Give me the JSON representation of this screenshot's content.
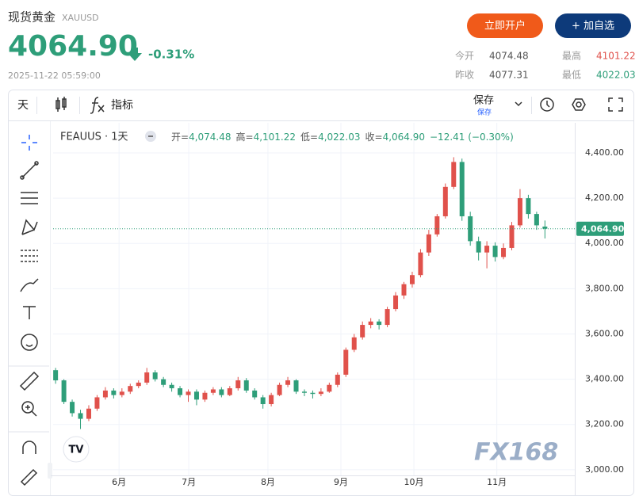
{
  "header": {
    "title": "现货黄金",
    "symbol": "XAUUSD",
    "price": "4064.90",
    "change_pct": "-0.31%",
    "timestamp": "2025-11-22 05:59:00",
    "buttons": [
      "立即开户",
      "+ 加自选"
    ],
    "stats": [
      {
        "label": "今开",
        "value": "4074.48"
      },
      {
        "label": "最高",
        "value": "4101.22"
      },
      {
        "label": "昨收",
        "value": "4077.31"
      },
      {
        "label": "最低",
        "value": "4022.03"
      }
    ]
  },
  "toolbar": {
    "interval": "天",
    "indicators": "指标",
    "save": "保存",
    "save_sub": "保存"
  },
  "chart_data": {
    "type": "candlestick",
    "symbol": "FEAUUS · 1天",
    "legend": [
      {
        "label": "开=",
        "value": "4,074.48"
      },
      {
        "label": "高=",
        "value": "4,101.22"
      },
      {
        "label": "低=",
        "value": "4,022.03"
      },
      {
        "label": "收=",
        "value": "4,064.90"
      }
    ],
    "change": "−12.41 (−0.30%)",
    "up_color": "#e0514b",
    "down_color": "#2e9e79",
    "open": [
      3440,
      3395,
      3300,
      3250,
      3225,
      3270,
      3320,
      3350,
      3330,
      3345,
      3370,
      3385,
      3430,
      3400,
      3375,
      3360,
      3330,
      3345,
      3310,
      3340,
      3355,
      3330,
      3360,
      3395,
      3350,
      3320,
      3290,
      3330,
      3375,
      3395,
      3345,
      3340,
      3335,
      3345,
      3375,
      3420,
      3530,
      3585,
      3640,
      3655,
      3640,
      3710,
      3770,
      3820,
      3860,
      3960,
      4040,
      4120,
      4250,
      4360,
      4120,
      4010,
      3960,
      3990,
      3940,
      3980,
      4080,
      4200,
      4130,
      4074.48
    ],
    "high": [
      3450,
      3400,
      3310,
      3265,
      3285,
      3330,
      3365,
      3360,
      3360,
      3380,
      3395,
      3450,
      3440,
      3410,
      3385,
      3370,
      3355,
      3355,
      3350,
      3365,
      3365,
      3370,
      3410,
      3405,
      3360,
      3330,
      3340,
      3385,
      3410,
      3400,
      3355,
      3350,
      3360,
      3385,
      3430,
      3540,
      3600,
      3655,
      3670,
      3665,
      3720,
      3785,
      3830,
      3875,
      3975,
      4060,
      4130,
      4265,
      4381,
      4375,
      4140,
      4030,
      4010,
      4005,
      4000,
      4095,
      4240,
      4215,
      4140,
      4101.22
    ],
    "low": [
      3380,
      3290,
      3235,
      3180,
      3215,
      3260,
      3310,
      3315,
      3320,
      3335,
      3360,
      3375,
      3390,
      3365,
      3345,
      3320,
      3300,
      3285,
      3300,
      3330,
      3320,
      3325,
      3350,
      3340,
      3310,
      3270,
      3280,
      3325,
      3365,
      3335,
      3325,
      3315,
      3325,
      3340,
      3365,
      3410,
      3520,
      3575,
      3625,
      3620,
      3630,
      3700,
      3755,
      3805,
      3850,
      3945,
      4030,
      4110,
      4240,
      4100,
      3990,
      3925,
      3890,
      3920,
      3930,
      3970,
      4070,
      4110,
      4060,
      4022.03
    ],
    "close": [
      3395,
      3300,
      3250,
      3225,
      3270,
      3320,
      3350,
      3330,
      3345,
      3370,
      3385,
      3430,
      3400,
      3375,
      3360,
      3330,
      3345,
      3310,
      3340,
      3355,
      3330,
      3360,
      3395,
      3350,
      3320,
      3290,
      3330,
      3375,
      3395,
      3345,
      3340,
      3335,
      3345,
      3375,
      3420,
      3530,
      3585,
      3640,
      3655,
      3640,
      3710,
      3770,
      3820,
      3860,
      3960,
      4040,
      4120,
      4250,
      4360,
      4120,
      4010,
      3960,
      3990,
      3940,
      3980,
      4080,
      4200,
      4130,
      4080,
      4064.9
    ],
    "xlim": [
      -0.3,
      62.6
    ],
    "xticks": [
      {
        "value": 7.65,
        "label": "6月"
      },
      {
        "value": 16.06,
        "label": "7月"
      },
      {
        "value": 25.6,
        "label": "8月"
      },
      {
        "value": 34.4,
        "label": "9月"
      },
      {
        "value": 43.2,
        "label": "10月"
      },
      {
        "value": 53.2,
        "label": "11月"
      }
    ],
    "ylim": [
      2975,
      4533
    ],
    "yticks": [
      {
        "value": 3000,
        "label": "3,000.00"
      },
      {
        "value": 3200,
        "label": "3,200.00"
      },
      {
        "value": 3400,
        "label": "3,400.00"
      },
      {
        "value": 3600,
        "label": "3,600.00"
      },
      {
        "value": 3800,
        "label": "3,800.00"
      },
      {
        "value": 4000,
        "label": "4,000.00"
      },
      {
        "value": 4200,
        "label": "4,200.00"
      },
      {
        "value": 4400,
        "label": "4,400.00"
      }
    ],
    "last_price": {
      "value": 4064.9,
      "label": "4,064.90"
    },
    "grid": true,
    "watermark": "FX168"
  }
}
